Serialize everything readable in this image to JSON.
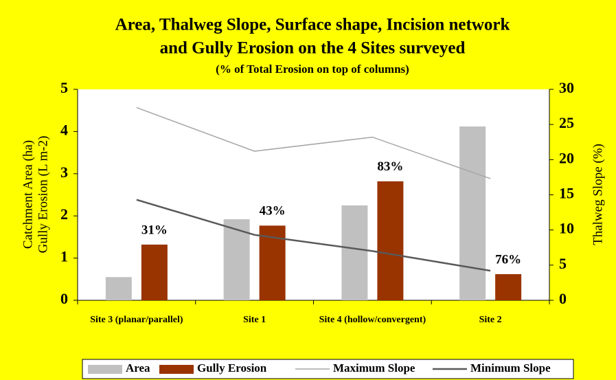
{
  "chart_data": {
    "type": "bar",
    "title": [
      "Area, Thalweg Slope, Surface shape, Incision network",
      "and Gully Erosion on the 4 Sites  surveyed"
    ],
    "subtitle": "(% of Total Erosion on top of columns)",
    "ylabel": [
      "Catchment Area (ha)",
      "Gully Erosion (L m-2)"
    ],
    "y2label": "Thalweg Slope (%)",
    "categories": [
      "Site 3 (planar/parallel)",
      "Site 1",
      "Site 4 (hollow/convergent)",
      "Site 2"
    ],
    "series": [
      {
        "name": "Area",
        "type": "bar",
        "color": "#c0c0c0",
        "values": [
          0.55,
          1.92,
          2.25,
          4.12
        ]
      },
      {
        "name": "Gully Erosion",
        "type": "bar",
        "color": "#993300",
        "values": [
          1.32,
          1.77,
          2.82,
          0.62
        ]
      },
      {
        "name": "Maximum Slope",
        "type": "line",
        "axis": "y2",
        "color": "#a6a6a6",
        "values": [
          27.4,
          21.2,
          23.2,
          17.3
        ]
      },
      {
        "name": "Minimum Slope",
        "type": "line",
        "axis": "y2",
        "color": "#595959",
        "values": [
          14.3,
          9.3,
          7.0,
          4.2
        ]
      }
    ],
    "annotations": [
      "31%",
      "43%",
      "83%",
      "76%"
    ],
    "ylim": [
      0,
      5
    ],
    "yticks": [
      0,
      1,
      2,
      3,
      4,
      5
    ],
    "y2lim": [
      0,
      30
    ],
    "y2ticks": [
      0,
      5,
      10,
      15,
      20,
      25,
      30
    ],
    "legend": "bottom"
  }
}
